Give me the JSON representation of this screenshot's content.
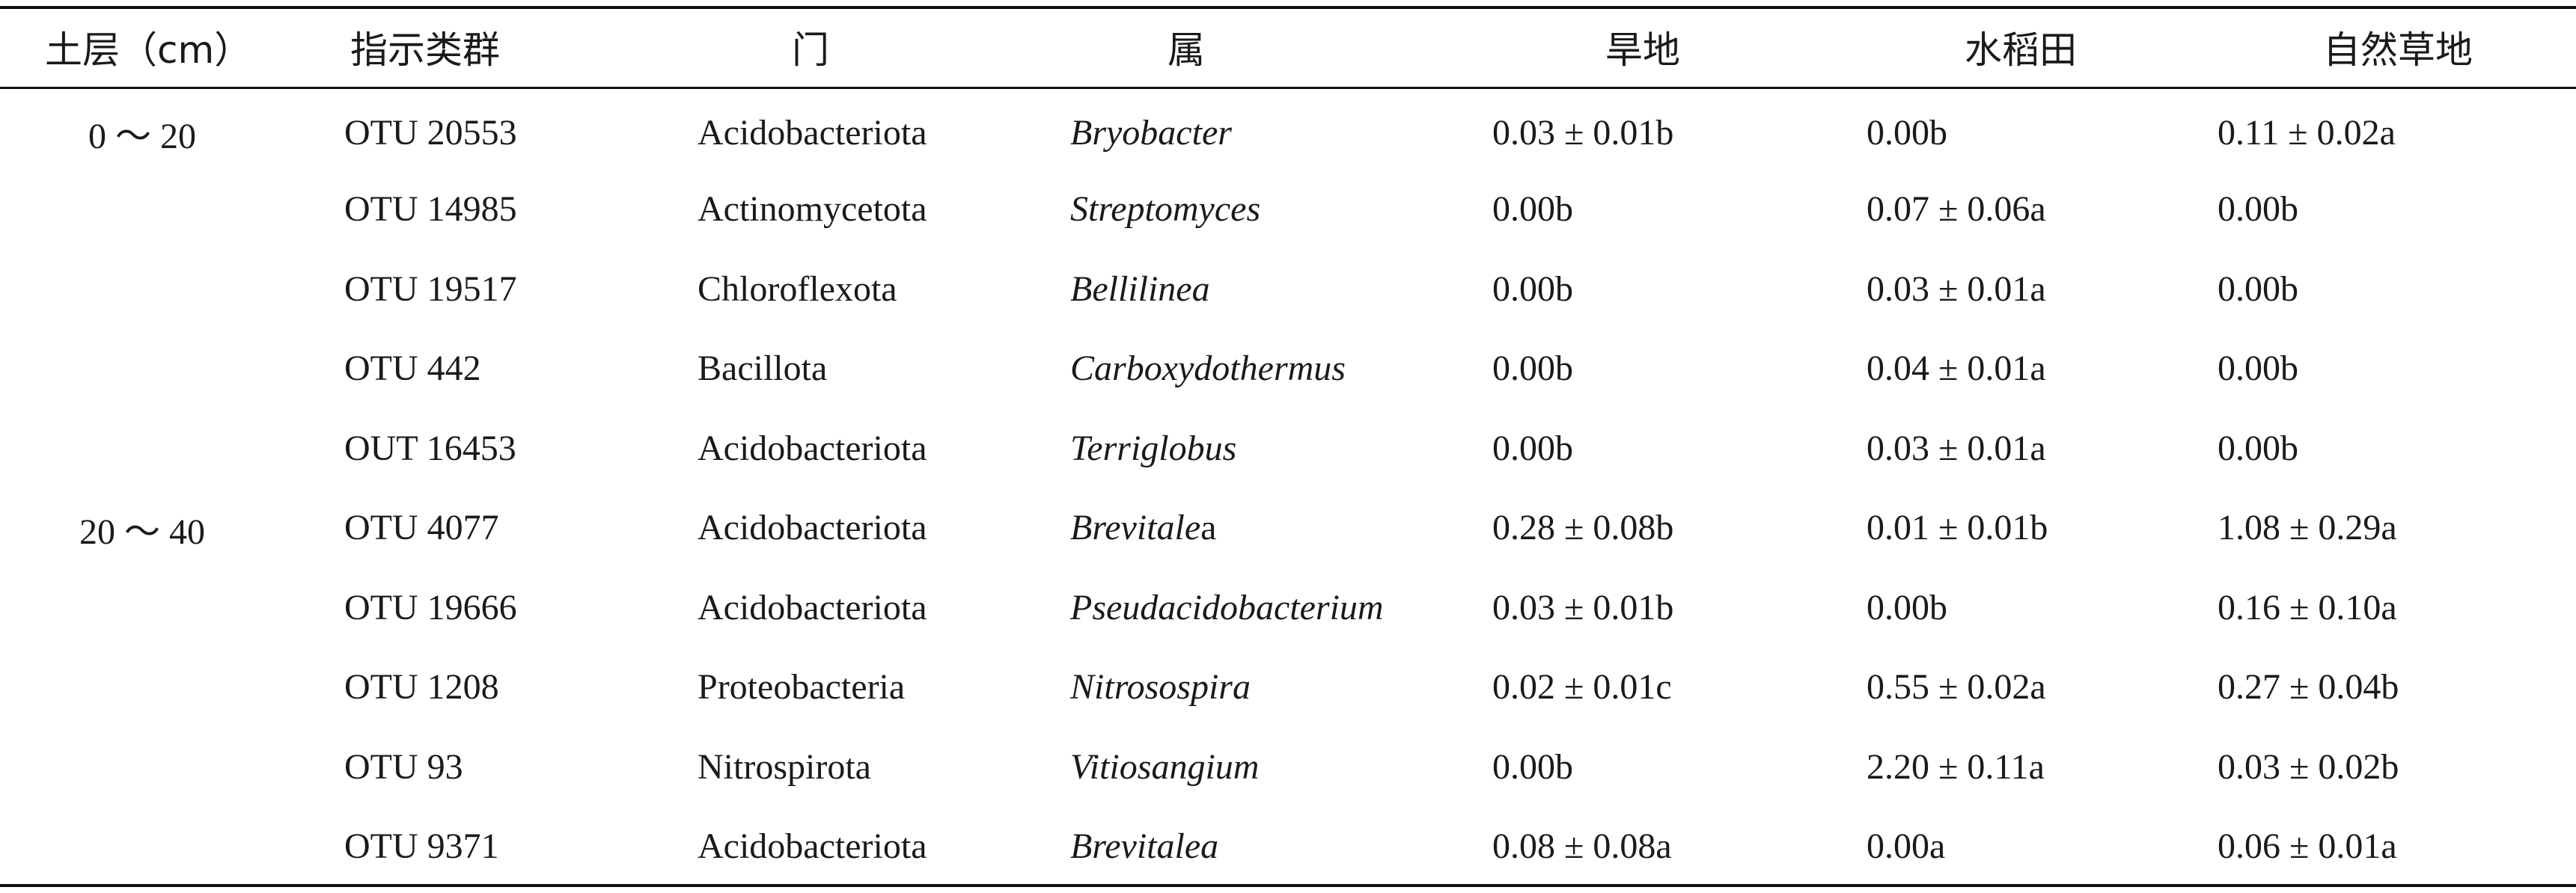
{
  "table": {
    "headers": {
      "soil_layer": "土层（cm）",
      "indicator_group": "指示类群",
      "phylum": "门",
      "genus": "属",
      "dryland": "旱地",
      "paddy": "水稻田",
      "natural_grassland": "自然草地"
    },
    "rows": [
      {
        "layer": "0 ～ 20",
        "otu": "OTU 20553",
        "phylum": "Acidobacteriota",
        "genus": "Bryobacter",
        "genus_suffix": "",
        "dryland": "0.03 ± 0.01b",
        "paddy": "0.00b",
        "grassland": "0.11 ± 0.02a"
      },
      {
        "layer": "",
        "otu": "OTU 14985",
        "phylum": "Actinomycetota",
        "genus": "Streptomyces",
        "genus_suffix": "",
        "dryland": "0.00b",
        "paddy": "0.07 ± 0.06a",
        "grassland": "0.00b"
      },
      {
        "layer": "",
        "otu": "OTU 19517",
        "phylum": "Chloroflexota",
        "genus": "Bellilinea",
        "genus_suffix": "",
        "dryland": "0.00b",
        "paddy": "0.03 ± 0.01a",
        "grassland": "0.00b"
      },
      {
        "layer": "",
        "otu": "OTU 442",
        "phylum": "Bacillota",
        "genus": "Carboxydothermus",
        "genus_suffix": "",
        "dryland": "0.00b",
        "paddy": "0.04 ± 0.01a",
        "grassland": "0.00b"
      },
      {
        "layer": "",
        "otu": "OUT 16453",
        "phylum": "Acidobacteriota",
        "genus": "Terriglobus",
        "genus_suffix": "",
        "dryland": "0.00b",
        "paddy": "0.03 ± 0.01a",
        "grassland": "0.00b"
      },
      {
        "layer": "20 ～ 40",
        "otu": "OTU 4077",
        "phylum": "Acidobacteriota",
        "genus": "Brevitale",
        "genus_suffix": "a",
        "dryland": "0.28 ± 0.08b",
        "paddy": "0.01 ± 0.01b",
        "grassland": "1.08 ± 0.29a"
      },
      {
        "layer": "",
        "otu": "OTU 19666",
        "phylum": "Acidobacteriota",
        "genus": "Pseudacidobacterium",
        "genus_suffix": "",
        "dryland": "0.03 ± 0.01b",
        "paddy": "0.00b",
        "grassland": "0.16 ± 0.10a"
      },
      {
        "layer": "",
        "otu": "OTU 1208",
        "phylum": "Proteobacteria",
        "genus": "Nitrosospira",
        "genus_suffix": "",
        "dryland": "0.02 ± 0.01c",
        "paddy": "0.55 ± 0.02a",
        "grassland": "0.27 ± 0.04b"
      },
      {
        "layer": "",
        "otu": "OTU 93",
        "phylum": "Nitrospirota",
        "genus": "Vitiosangium",
        "genus_suffix": "",
        "dryland": "0.00b",
        "paddy": "2.20 ± 0.11a",
        "grassland": "0.03 ± 0.02b"
      },
      {
        "layer": "",
        "otu": "OTU 9371",
        "phylum": "Acidobacteriota",
        "genus": "Brevitalea",
        "genus_suffix": "",
        "dryland": "0.08 ± 0.08a",
        "paddy": "0.00a",
        "grassland": "0.06 ± 0.01a"
      }
    ]
  }
}
